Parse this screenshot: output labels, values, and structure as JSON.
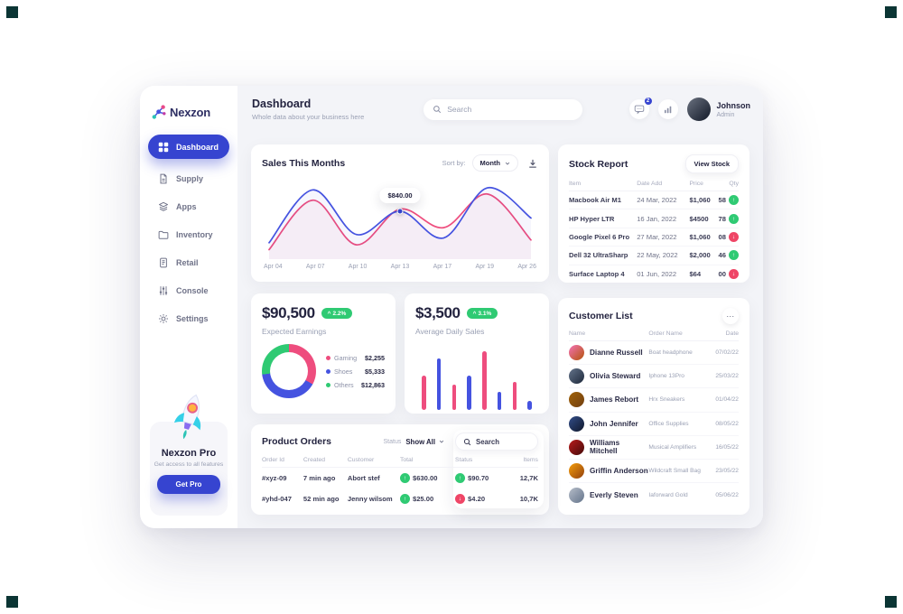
{
  "brand": {
    "name": "Nexzon"
  },
  "icons": {
    "more": "⋯",
    "caret": "^",
    "trend_up": "↑",
    "trend_down": "↓"
  },
  "sidebar": {
    "items": [
      {
        "label": "Dashboard"
      },
      {
        "label": "Supply"
      },
      {
        "label": "Apps"
      },
      {
        "label": "Inventory"
      },
      {
        "label": "Retail"
      },
      {
        "label": "Console"
      },
      {
        "label": "Settings"
      }
    ],
    "pro": {
      "title": "Nexzon Pro",
      "subtitle": "Get access to all features",
      "button": "Get Pro"
    }
  },
  "header": {
    "title": "Dashboard",
    "subtitle": "Whole data about your business here",
    "search_placeholder": "Search",
    "messages_badge": "2",
    "user": {
      "name": "Johnson",
      "role": "Admin"
    }
  },
  "sales": {
    "title": "Sales This Months",
    "sort_label": "Sort by:",
    "sort_value": "Month"
  },
  "stock": {
    "title": "Stock Report",
    "button": "View Stock",
    "columns": [
      "Item",
      "Date Add",
      "Price",
      "Qty"
    ],
    "rows": [
      {
        "item": "Macbook Air M1",
        "date": "24 Mar, 2022",
        "price": "$1,060",
        "qty": "58",
        "trend": "up"
      },
      {
        "item": "HP Hyper LTR",
        "date": "16 Jan, 2022",
        "price": "$4500",
        "qty": "78",
        "trend": "up"
      },
      {
        "item": "Google Pixel 6 Pro",
        "date": "27 Mar, 2022",
        "price": "$1,060",
        "qty": "08",
        "trend": "down"
      },
      {
        "item": "Dell 32 UltraSharp",
        "date": "22 May, 2022",
        "price": "$2,000",
        "qty": "46",
        "trend": "up"
      },
      {
        "item": "Surface Laptop 4",
        "date": "01 Jun, 2022",
        "price": "$64",
        "qty": "00",
        "trend": "down"
      }
    ]
  },
  "earnings": {
    "value": "$90,500",
    "badge": "2.2%",
    "label": "Expected Earnings",
    "legend": [
      {
        "name": "Gaming",
        "value": "$2,255",
        "color": "#ee4d7e"
      },
      {
        "name": "Shoes",
        "value": "$5,333",
        "color": "#4553e0"
      },
      {
        "name": "Others",
        "value": "$12,863",
        "color": "#2fca73"
      }
    ]
  },
  "daily": {
    "value": "$3,500",
    "badge": "3.1%",
    "label": "Average Daily Sales"
  },
  "customers": {
    "title": "Customer List",
    "columns": [
      "Name",
      "Order Name",
      "Date"
    ],
    "rows": [
      {
        "name": "Dianne Russell",
        "order": "Boat headphone",
        "date": "07/02/22"
      },
      {
        "name": "Olivia Steward",
        "order": "Iphone 13Pro",
        "date": "25/03/22"
      },
      {
        "name": "James Rebort",
        "order": "Hrx Sneakers",
        "date": "01/04/22"
      },
      {
        "name": "John Jennifer",
        "order": "Office Supplies",
        "date": "08/05/22"
      },
      {
        "name": "Williams Mitchell",
        "order": "Musical Amplifiers",
        "date": "16/05/22"
      },
      {
        "name": "Griffin Anderson",
        "order": "Wildcraft Small Bag",
        "date": "23/05/22"
      },
      {
        "name": "Everly Steven",
        "order": "Iaforward Gold",
        "date": "05/06/22"
      }
    ]
  },
  "orders": {
    "title": "Product Orders",
    "status_label": "Status",
    "status_value": "Show All",
    "search_placeholder": "Search",
    "columns": [
      "Order Id",
      "Created",
      "Customer",
      "Total",
      "Status",
      "Items"
    ],
    "rows": [
      {
        "id": "#xyz-09",
        "created": "7 min ago",
        "customer": "Abort stef",
        "total": "$630.00",
        "total_trend": "up",
        "status": "$90.70",
        "status_trend": "up",
        "items": "12,7K"
      },
      {
        "id": "#yhd-047",
        "created": "52 min ago",
        "customer": "Jenny wilsom",
        "total": "$25.00",
        "total_trend": "up",
        "status": "$4.20",
        "status_trend": "down",
        "items": "10,7K"
      }
    ]
  },
  "chart_data": [
    {
      "type": "line",
      "title": "Sales This Months",
      "x": [
        "Apr 04",
        "Apr 07",
        "Apr 10",
        "Apr 13",
        "Apr 17",
        "Apr 19",
        "Apr 26"
      ],
      "series": [
        {
          "name": "pink",
          "color": "#ee4d7e",
          "values": [
            6,
            78,
            13,
            65,
            38,
            87,
            20
          ]
        },
        {
          "name": "blue",
          "color": "#4553e0",
          "values": [
            16,
            93,
            28,
            62,
            23,
            96,
            52
          ]
        }
      ],
      "ylim": [
        0,
        100
      ],
      "tooltip": {
        "index": 3,
        "series": "blue",
        "label": "$840.00"
      }
    },
    {
      "type": "donut",
      "title": "Expected Earnings",
      "segments": [
        {
          "name": "Gaming",
          "color": "#ee4d7e",
          "percent": 33
        },
        {
          "name": "Shoes",
          "color": "#4553e0",
          "percent": 40
        },
        {
          "name": "Others",
          "color": "#2fca73",
          "percent": 27
        }
      ],
      "values": {
        "Gaming": "$2,255",
        "Shoes": "$5,333",
        "Others": "$12,863"
      }
    },
    {
      "type": "bar",
      "title": "Average Daily Sales",
      "values": [
        55,
        82,
        40,
        55,
        93,
        28,
        44,
        15
      ],
      "colors": [
        "#ee4d7e",
        "#4553e0",
        "#ee4d7e",
        "#4553e0",
        "#ee4d7e",
        "#4553e0",
        "#ee4d7e",
        "#4553e0"
      ]
    }
  ]
}
